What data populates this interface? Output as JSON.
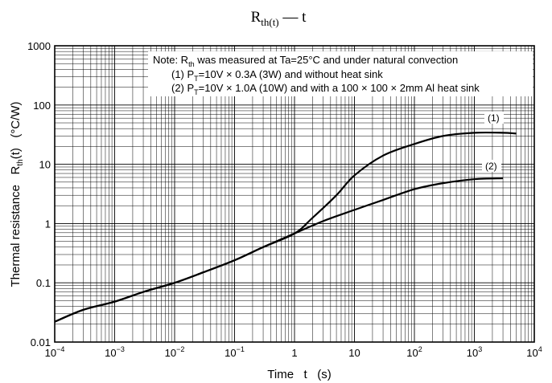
{
  "chart_data": {
    "type": "line",
    "title": {
      "base": "R",
      "sub": "th(t)",
      "rest": " — t"
    },
    "xlabel": "Time   t   (s)",
    "ylabel": {
      "pre": "Thermal resistance   R",
      "sub": "th",
      "post": "(t)   (°C/W)"
    },
    "x_scale": "log",
    "y_scale": "log",
    "xlim": [
      0.0001,
      10000
    ],
    "ylim": [
      0.01,
      1000
    ],
    "grid": true,
    "x_ticks": [
      {
        "value": 0.0001,
        "base": "10",
        "exp": "−4"
      },
      {
        "value": 0.001,
        "base": "10",
        "exp": "−3"
      },
      {
        "value": 0.01,
        "base": "10",
        "exp": "−2"
      },
      {
        "value": 0.1,
        "base": "10",
        "exp": "−1"
      },
      {
        "value": 1,
        "base": "1",
        "exp": ""
      },
      {
        "value": 10,
        "base": "10",
        "exp": ""
      },
      {
        "value": 100,
        "base": "10",
        "exp": "2"
      },
      {
        "value": 1000,
        "base": "10",
        "exp": "3"
      },
      {
        "value": 10000,
        "base": "10",
        "exp": "4"
      }
    ],
    "y_ticks": [
      {
        "value": 0.01,
        "label": "0.01"
      },
      {
        "value": 0.1,
        "label": "0.1"
      },
      {
        "value": 1,
        "label": "1"
      },
      {
        "value": 10,
        "label": "10"
      },
      {
        "value": 100,
        "label": "100"
      },
      {
        "value": 1000,
        "label": "1000"
      }
    ],
    "note": {
      "line1": {
        "pre": "Note: R",
        "sub": "th",
        "post": " was measured at Ta=25°C and under natural convection"
      },
      "line2": {
        "pre": "(1) P",
        "sub": "T",
        "post": "=10V × 0.3A (3W) and without heat sink"
      },
      "line3": {
        "pre": "(2) P",
        "sub": "T",
        "post": "=10V × 1.0A (10W) and with a 100 × 100 × 2mm Al heat sink"
      }
    },
    "series": [
      {
        "name": "(1)",
        "points": [
          [
            0.0001,
            0.022
          ],
          [
            0.0003,
            0.035
          ],
          [
            0.001,
            0.048
          ],
          [
            0.003,
            0.07
          ],
          [
            0.01,
            0.1
          ],
          [
            0.03,
            0.15
          ],
          [
            0.1,
            0.24
          ],
          [
            0.3,
            0.4
          ],
          [
            1,
            0.68
          ],
          [
            2,
            1.25
          ],
          [
            5,
            3.0
          ],
          [
            10,
            6.5
          ],
          [
            30,
            14
          ],
          [
            100,
            22
          ],
          [
            300,
            30
          ],
          [
            1000,
            34
          ],
          [
            3000,
            34
          ],
          [
            5000,
            33
          ]
        ]
      },
      {
        "name": "(2)",
        "points": [
          [
            0.0001,
            0.022
          ],
          [
            0.0003,
            0.035
          ],
          [
            0.001,
            0.048
          ],
          [
            0.003,
            0.07
          ],
          [
            0.01,
            0.1
          ],
          [
            0.03,
            0.15
          ],
          [
            0.1,
            0.24
          ],
          [
            0.3,
            0.4
          ],
          [
            1,
            0.68
          ],
          [
            3,
            1.1
          ],
          [
            10,
            1.7
          ],
          [
            30,
            2.5
          ],
          [
            100,
            3.8
          ],
          [
            300,
            4.8
          ],
          [
            1000,
            5.6
          ],
          [
            3000,
            5.8
          ]
        ]
      }
    ]
  }
}
